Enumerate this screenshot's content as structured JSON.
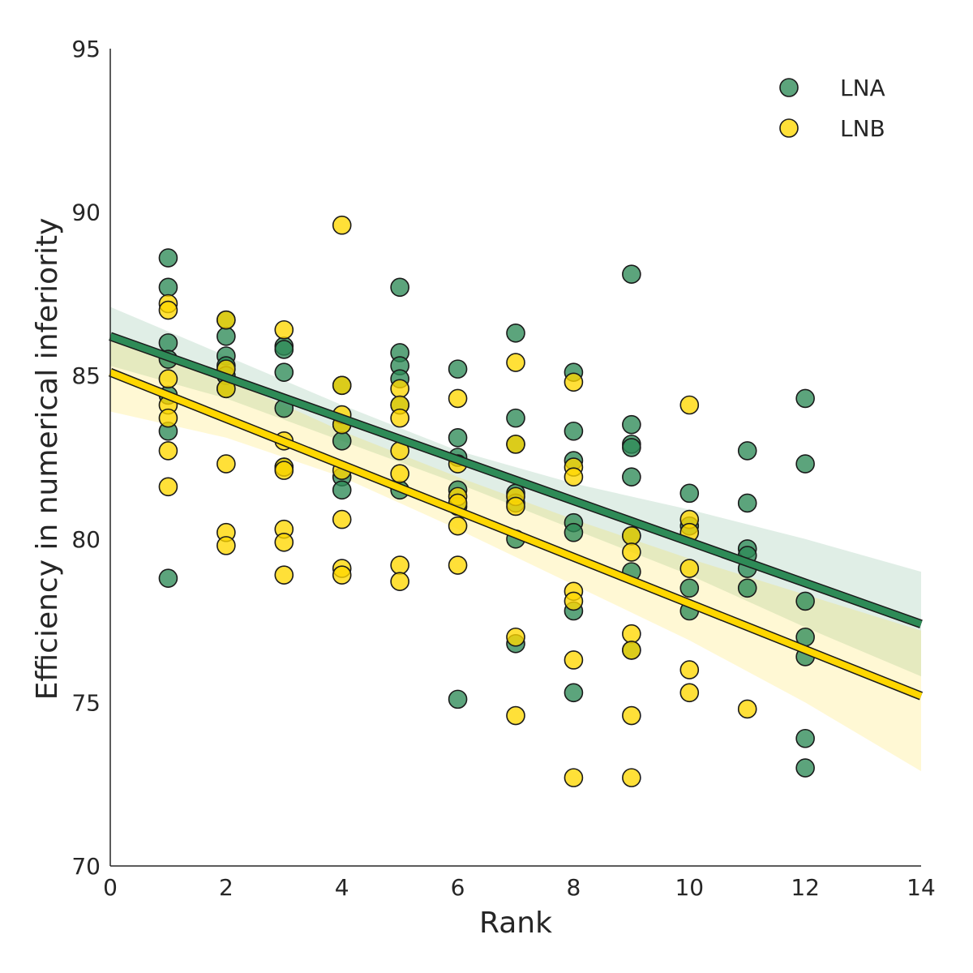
{
  "chart_data": {
    "type": "scatter",
    "title": "",
    "xlabel": "Rank",
    "ylabel": "Efficiency in numerical inferiority",
    "xlim": [
      0,
      14
    ],
    "ylim": [
      70,
      95
    ],
    "xticks": [
      "0",
      "2",
      "4",
      "6",
      "8",
      "10",
      "12",
      "14"
    ],
    "yticks": [
      "70",
      "75",
      "80",
      "85",
      "90",
      "95"
    ],
    "grid": false,
    "legend_position": "top-right",
    "series": [
      {
        "name": "LNA",
        "color": "#2e8b57",
        "points": [
          [
            1,
            88.6
          ],
          [
            1,
            87.7
          ],
          [
            1,
            86.0
          ],
          [
            1,
            85.5
          ],
          [
            1,
            84.4
          ],
          [
            1,
            83.3
          ],
          [
            1,
            78.8
          ],
          [
            2,
            86.7
          ],
          [
            2,
            86.2
          ],
          [
            2,
            85.6
          ],
          [
            2,
            85.3
          ],
          [
            2,
            85.0
          ],
          [
            2,
            84.6
          ],
          [
            3,
            85.9
          ],
          [
            3,
            85.8
          ],
          [
            3,
            85.1
          ],
          [
            3,
            84.0
          ],
          [
            3,
            82.2
          ],
          [
            4,
            84.7
          ],
          [
            4,
            83.5
          ],
          [
            4,
            83.0
          ],
          [
            4,
            81.9
          ],
          [
            4,
            81.5
          ],
          [
            5,
            87.7
          ],
          [
            5,
            85.7
          ],
          [
            5,
            85.3
          ],
          [
            5,
            84.9
          ],
          [
            5,
            84.1
          ],
          [
            5,
            81.5
          ],
          [
            6,
            85.2
          ],
          [
            6,
            83.1
          ],
          [
            6,
            82.5
          ],
          [
            6,
            81.5
          ],
          [
            6,
            81.0
          ],
          [
            6,
            75.1
          ],
          [
            7,
            86.3
          ],
          [
            7,
            83.7
          ],
          [
            7,
            82.9
          ],
          [
            7,
            81.4
          ],
          [
            7,
            81.1
          ],
          [
            7,
            80.0
          ],
          [
            7,
            76.8
          ],
          [
            8,
            85.1
          ],
          [
            8,
            83.3
          ],
          [
            8,
            82.4
          ],
          [
            8,
            80.5
          ],
          [
            8,
            80.2
          ],
          [
            8,
            77.8
          ],
          [
            8,
            75.3
          ],
          [
            9,
            88.1
          ],
          [
            9,
            83.5
          ],
          [
            9,
            82.9
          ],
          [
            9,
            82.8
          ],
          [
            9,
            81.9
          ],
          [
            9,
            80.1
          ],
          [
            9,
            79.0
          ],
          [
            9,
            76.6
          ],
          [
            10,
            81.4
          ],
          [
            10,
            80.4
          ],
          [
            10,
            78.5
          ],
          [
            10,
            77.8
          ],
          [
            11,
            82.7
          ],
          [
            11,
            81.1
          ],
          [
            11,
            79.7
          ],
          [
            11,
            79.5
          ],
          [
            11,
            79.1
          ],
          [
            11,
            78.5
          ],
          [
            12,
            84.3
          ],
          [
            12,
            82.3
          ],
          [
            12,
            78.1
          ],
          [
            12,
            77.0
          ],
          [
            12,
            76.4
          ],
          [
            12,
            73.9
          ],
          [
            12,
            73.0
          ]
        ],
        "fit": [
          [
            0,
            86.2
          ],
          [
            14,
            77.4
          ]
        ],
        "ci_upper": [
          [
            0,
            87.1
          ],
          [
            2,
            85.6
          ],
          [
            4,
            84.1
          ],
          [
            6,
            82.7
          ],
          [
            8,
            81.7
          ],
          [
            10,
            80.9
          ],
          [
            12,
            80.0
          ],
          [
            14,
            79.0
          ]
        ],
        "ci_lower": [
          [
            0,
            85.3
          ],
          [
            2,
            84.3
          ],
          [
            4,
            83.0
          ],
          [
            6,
            81.7
          ],
          [
            8,
            80.3
          ],
          [
            10,
            78.9
          ],
          [
            12,
            77.3
          ],
          [
            14,
            75.8
          ]
        ]
      },
      {
        "name": "LNB",
        "color": "#ffd700",
        "points": [
          [
            1,
            87.2
          ],
          [
            1,
            87.0
          ],
          [
            1,
            84.9
          ],
          [
            1,
            84.1
          ],
          [
            1,
            83.7
          ],
          [
            1,
            82.7
          ],
          [
            1,
            81.6
          ],
          [
            2,
            86.7
          ],
          [
            2,
            85.2
          ],
          [
            2,
            84.6
          ],
          [
            2,
            82.3
          ],
          [
            2,
            80.2
          ],
          [
            2,
            79.8
          ],
          [
            3,
            86.4
          ],
          [
            3,
            83.0
          ],
          [
            3,
            82.2
          ],
          [
            3,
            82.1
          ],
          [
            3,
            80.3
          ],
          [
            3,
            79.9
          ],
          [
            3,
            78.9
          ],
          [
            4,
            89.6
          ],
          [
            4,
            84.7
          ],
          [
            4,
            83.8
          ],
          [
            4,
            83.5
          ],
          [
            4,
            82.1
          ],
          [
            4,
            80.6
          ],
          [
            4,
            79.1
          ],
          [
            4,
            78.9
          ],
          [
            5,
            84.6
          ],
          [
            5,
            84.1
          ],
          [
            5,
            83.7
          ],
          [
            5,
            82.7
          ],
          [
            5,
            82.0
          ],
          [
            5,
            79.2
          ],
          [
            5,
            78.7
          ],
          [
            6,
            84.3
          ],
          [
            6,
            82.3
          ],
          [
            6,
            81.3
          ],
          [
            6,
            81.1
          ],
          [
            6,
            80.4
          ],
          [
            6,
            79.2
          ],
          [
            7,
            85.4
          ],
          [
            7,
            82.9
          ],
          [
            7,
            81.3
          ],
          [
            7,
            81.0
          ],
          [
            7,
            77.0
          ],
          [
            7,
            74.6
          ],
          [
            8,
            84.8
          ],
          [
            8,
            82.2
          ],
          [
            8,
            81.9
          ],
          [
            8,
            78.4
          ],
          [
            8,
            78.1
          ],
          [
            8,
            76.3
          ],
          [
            8,
            72.7
          ],
          [
            9,
            80.1
          ],
          [
            9,
            79.6
          ],
          [
            9,
            77.1
          ],
          [
            9,
            76.6
          ],
          [
            9,
            74.6
          ],
          [
            9,
            72.7
          ],
          [
            10,
            84.1
          ],
          [
            10,
            80.6
          ],
          [
            10,
            80.2
          ],
          [
            10,
            79.1
          ],
          [
            10,
            76.0
          ],
          [
            10,
            75.3
          ],
          [
            11,
            74.8
          ]
        ],
        "fit": [
          [
            0,
            85.1
          ],
          [
            14,
            75.2
          ]
        ],
        "ci_upper": [
          [
            0,
            86.2
          ],
          [
            2,
            84.9
          ],
          [
            4,
            83.3
          ],
          [
            6,
            81.9
          ],
          [
            8,
            80.6
          ],
          [
            10,
            79.4
          ],
          [
            12,
            78.3
          ],
          [
            14,
            77.2
          ]
        ],
        "ci_lower": [
          [
            0,
            83.9
          ],
          [
            2,
            83.1
          ],
          [
            4,
            81.9
          ],
          [
            6,
            80.3
          ],
          [
            8,
            78.6
          ],
          [
            10,
            76.9
          ],
          [
            12,
            75.0
          ],
          [
            14,
            72.9
          ]
        ]
      }
    ]
  }
}
